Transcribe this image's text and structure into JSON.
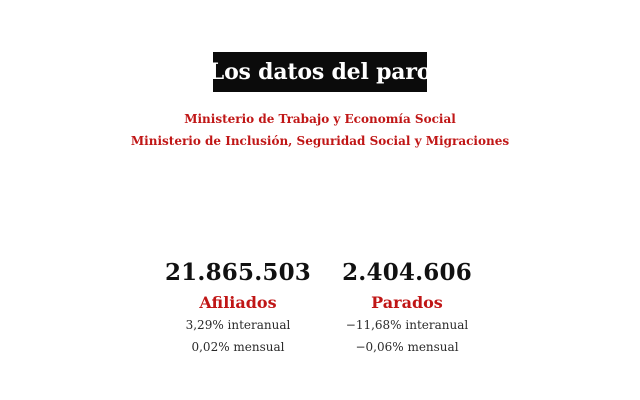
{
  "header": {
    "title": "Los datos del paro",
    "sources": [
      "Ministerio de Trabajo y Economía Social",
      "Ministerio de Inclusión, Seguridad Social y Migraciones"
    ]
  },
  "stats": {
    "afiliados": {
      "value": "21.865.503",
      "label": "Afiliados",
      "interanual": "3,29% interanual",
      "mensual": "0,02% mensual"
    },
    "parados": {
      "value": "2.404.606",
      "label": "Parados",
      "interanual": "−11,68% interanual",
      "mensual": "−0,06% mensual"
    }
  },
  "colors": {
    "accent": "#c01616",
    "title_background": "#0b0b0b",
    "text": "#111111"
  }
}
